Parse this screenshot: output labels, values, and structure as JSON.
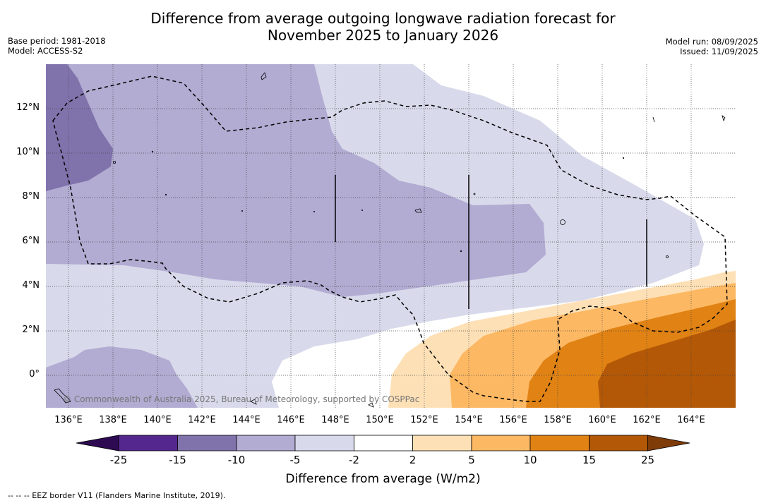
{
  "header": {
    "title_line1": "Difference from average outgoing longwave radiation forecast for",
    "title_line2": "November 2025 to January 2026",
    "base_period": "Base period: 1981-2018",
    "model": "Model: ACCESS-S2",
    "model_run": "Model run: 08/09/2025",
    "issued": "Issued: 11/09/2025"
  },
  "map": {
    "latitude_labels": [
      "12°N",
      "10°N",
      "8°N",
      "6°N",
      "4°N",
      "2°N",
      "0°"
    ],
    "longitude_labels": [
      "136°E",
      "138°E",
      "140°E",
      "142°E",
      "144°E",
      "146°E",
      "148°E",
      "150°E",
      "152°E",
      "154°E",
      "156°E",
      "158°E",
      "160°E",
      "162°E",
      "164°E"
    ],
    "copyright": "© Commonwealth of Australia 2025, Bureau of Meteorology, supported by COSPPac"
  },
  "colorbar": {
    "tick_labels": [
      "-25",
      "-15",
      "-10",
      "-5",
      "-2",
      "2",
      "5",
      "10",
      "15",
      "25"
    ],
    "label": "Difference from average (W/m2)",
    "colors": {
      "lt_-25": "#2d0a52",
      "-25_-15": "#54278f",
      "-15_-10": "#8073ac",
      "-10_-5": "#b2abd2",
      "-5_-2": "#d8daeb",
      "-2_2": "#ffffff",
      "2_5": "#fee0b6",
      "5_10": "#fdb863",
      "10_15": "#e08214",
      "15_25": "#b35806",
      "gt_25": "#7f3b08"
    }
  },
  "footnote": "--  --  -- EEZ border V11 (Flanders Marine Institute, 2019)."
}
